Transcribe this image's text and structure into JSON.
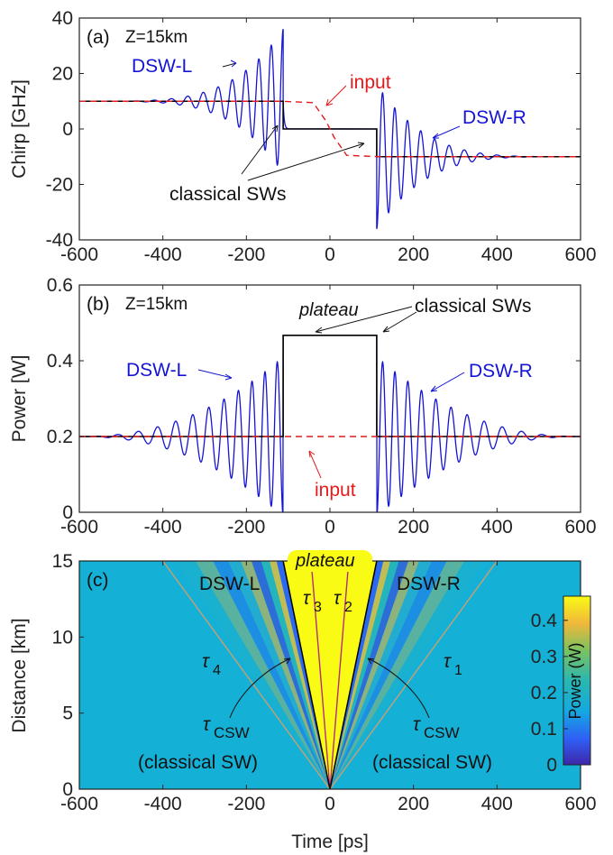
{
  "chart_data": [
    {
      "id": "a",
      "type": "line",
      "panel_label": "(a)",
      "annotation": "Z=15km",
      "ylabel": "Chirp [GHz]",
      "xlim": [
        -600,
        600
      ],
      "ylim": [
        -40,
        40
      ],
      "xticks": [
        -600,
        -400,
        -200,
        0,
        200,
        400,
        600
      ],
      "yticks": [
        -40,
        -20,
        0,
        20,
        40
      ],
      "x_tick_labels": [
        "-600",
        "-400",
        "-200",
        "0",
        "200",
        "400",
        "600"
      ],
      "y_tick_labels": [
        "-40",
        "-20",
        "0",
        "20",
        "40"
      ],
      "series": [
        {
          "name": "input",
          "color": "#e41a1c",
          "style": "dashed",
          "x": [
            -600,
            -120,
            -40,
            -10,
            0,
            10,
            40,
            120,
            600
          ],
          "y": [
            10,
            10,
            9.5,
            3,
            0,
            -3,
            -9.5,
            -10,
            -10
          ]
        },
        {
          "name": "",
          "color": "#000000",
          "style": "solid",
          "x": [
            -600,
            -112,
            -112,
            112,
            112,
            600
          ],
          "y": [
            10,
            10,
            0,
            0,
            -10,
            -10
          ]
        },
        {
          "name": "",
          "color": "#1414d4",
          "style": "solid",
          "x": [
            -600,
            -520,
            -480,
            -440,
            -400,
            -360,
            -320,
            -280,
            -240,
            -200,
            -160,
            -120,
            -112,
            112,
            120,
            160,
            200,
            240,
            280,
            320,
            360,
            400,
            440,
            480,
            520,
            600
          ],
          "peaks": [
            10.1,
            10.3,
            10.8,
            11.5,
            12.8,
            14.5,
            17,
            20.5,
            25,
            30,
            36
          ],
          "envelope_note": ""
        }
      ],
      "labels": {
        "dsw_l": "DSW-L",
        "dsw_r": "DSW-R",
        "input": "input",
        "classical": "classical SWs"
      }
    },
    {
      "id": "b",
      "type": "line",
      "panel_label": "(b)",
      "annotation": "Z=15km",
      "ylabel": "Power [W]",
      "xlim": [
        -600,
        600
      ],
      "ylim": [
        0,
        0.6
      ],
      "xticks": [
        -600,
        -400,
        -200,
        0,
        200,
        400,
        600
      ],
      "yticks": [
        0,
        0.2,
        0.4,
        0.6
      ],
      "x_tick_labels": [
        "-600",
        "-400",
        "-200",
        "0",
        "200",
        "400",
        "600"
      ],
      "y_tick_labels": [
        "0",
        "0.2",
        "0.4",
        "0.6"
      ],
      "series": [
        {
          "name": "input",
          "color": "#e41a1c",
          "style": "dashed",
          "x": [
            -600,
            600
          ],
          "y": [
            0.2,
            0.2
          ]
        },
        {
          "name": "",
          "color": "#000000",
          "style": "solid",
          "x": [
            -600,
            -112,
            -112,
            112,
            112,
            600
          ],
          "y": [
            0.2,
            0.2,
            0.467,
            0.467,
            0.2,
            0.2
          ]
        },
        {
          "name": "",
          "color": "#1414d4",
          "style": "solid",
          "plateau": 0.467,
          "background": 0.2
        }
      ],
      "labels": {
        "dsw_l": "DSW-L",
        "dsw_r": "DSW-R",
        "input": "input",
        "classical": "classical SWs",
        "plateau": "plateau"
      }
    },
    {
      "id": "c",
      "type": "heatmap",
      "panel_label": "(c)",
      "xlabel": "Time [ps]",
      "ylabel": "Distance [km]",
      "xlim": [
        -600,
        600
      ],
      "ylim": [
        0,
        15
      ],
      "xticks": [
        -600,
        -400,
        -200,
        0,
        200,
        400,
        600
      ],
      "yticks": [
        0,
        5,
        10,
        15
      ],
      "x_tick_labels": [
        "-600",
        "-400",
        "-200",
        "0",
        "200",
        "400",
        "600"
      ],
      "y_tick_labels": [
        "0",
        "5",
        "10",
        "15"
      ],
      "colorbar": {
        "label": "Power (W)",
        "ticks": [
          "0",
          "0.1",
          "0.2",
          "0.3",
          "0.4"
        ],
        "range": [
          0,
          0.467
        ]
      },
      "lines": [
        {
          "name": "tau_1",
          "color": "#c8a070",
          "x_at_top": 400
        },
        {
          "name": "tau_4",
          "color": "#c8a070",
          "x_at_top": -400
        },
        {
          "name": "tau_2",
          "color": "#b03080",
          "x_at_top": 45
        },
        {
          "name": "tau_3",
          "color": "#b03080",
          "x_at_top": -45
        },
        {
          "name": "tau_csw_r",
          "color": "#000000",
          "x_at_top": 112
        },
        {
          "name": "tau_csw_l",
          "color": "#000000",
          "x_at_top": -112
        }
      ],
      "labels": {
        "dsw_l": "DSW-L",
        "dsw_r": "DSW-R",
        "plateau": "plateau",
        "tau": "τ",
        "tau1_sub": "1",
        "tau2_sub": "2",
        "tau3_sub": "3",
        "tau4_sub": "4",
        "csw_sub": "CSW",
        "classical_sw": "(classical SW)"
      }
    }
  ]
}
